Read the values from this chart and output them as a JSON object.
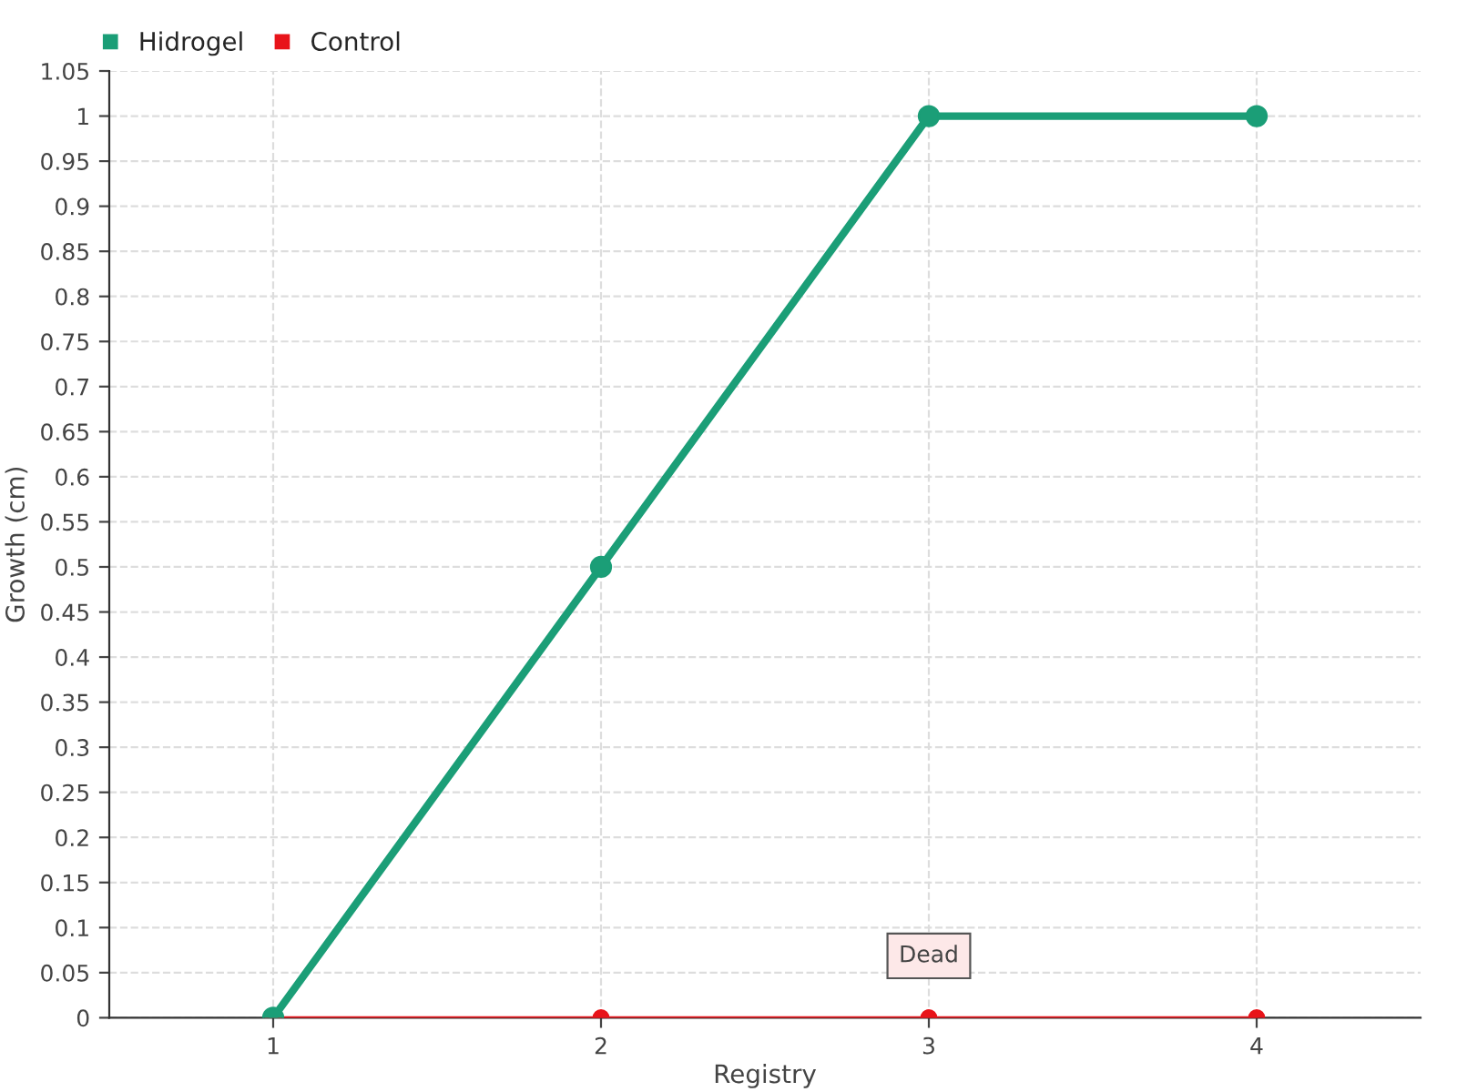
{
  "chart_data": {
    "type": "line",
    "xlabel": "Registry",
    "ylabel": "Growth (cm)",
    "x": [
      1,
      2,
      3,
      4
    ],
    "series": [
      {
        "name": "Hidrogel",
        "color": "#1b9e77",
        "values": [
          0,
          0.5,
          1,
          1
        ]
      },
      {
        "name": "Control",
        "color": "#e8141a",
        "values": [
          0,
          0,
          0,
          0
        ]
      }
    ],
    "annotations": [
      {
        "text": "Dead",
        "x": 3,
        "y": 0
      }
    ],
    "xlim": [
      0.5,
      4.5
    ],
    "xticks": [
      1,
      2,
      3,
      4
    ],
    "ylim": [
      0,
      1.05
    ],
    "yticks": [
      0,
      0.05,
      0.1,
      0.15,
      0.2,
      0.25,
      0.3,
      0.35,
      0.4,
      0.45,
      0.5,
      0.55,
      0.6,
      0.65,
      0.7,
      0.75,
      0.8,
      0.85,
      0.9,
      0.95,
      1,
      1.05
    ],
    "grid": true,
    "legend": "top left",
    "marker": "circle",
    "line_style": "solid"
  }
}
